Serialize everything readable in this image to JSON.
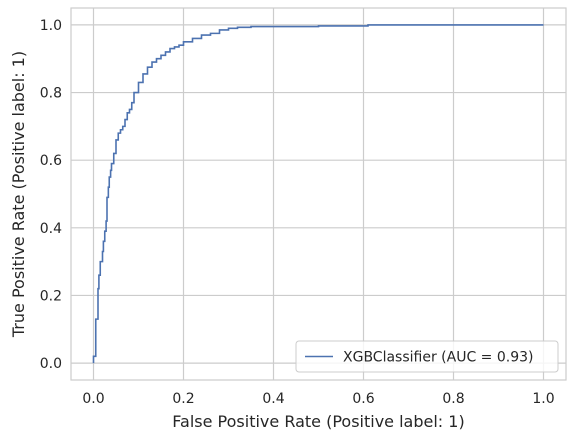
{
  "chart_data": {
    "type": "line",
    "title": "",
    "xlabel": "False Positive Rate (Positive label: 1)",
    "ylabel": "True Positive Rate (Positive label: 1)",
    "xlim": [
      -0.05,
      1.05
    ],
    "ylim": [
      -0.05,
      1.05
    ],
    "xticks": [
      0.0,
      0.2,
      0.4,
      0.6,
      0.8,
      1.0
    ],
    "yticks": [
      0.0,
      0.2,
      0.4,
      0.6,
      0.8,
      1.0
    ],
    "xtick_labels": [
      "0.0",
      "0.2",
      "0.4",
      "0.6",
      "0.8",
      "1.0"
    ],
    "ytick_labels": [
      "0.0",
      "0.2",
      "0.4",
      "0.6",
      "0.8",
      "1.0"
    ],
    "grid": true,
    "legend_position": "lower-right",
    "series": [
      {
        "name": "XGBClassifier (AUC = 0.93)",
        "color": "#4c72b0",
        "x": [
          0.0,
          0.0,
          0.005,
          0.005,
          0.01,
          0.01,
          0.012,
          0.015,
          0.02,
          0.022,
          0.025,
          0.028,
          0.03,
          0.033,
          0.035,
          0.038,
          0.04,
          0.045,
          0.05,
          0.055,
          0.06,
          0.065,
          0.07,
          0.075,
          0.08,
          0.085,
          0.09,
          0.1,
          0.11,
          0.12,
          0.13,
          0.14,
          0.15,
          0.16,
          0.17,
          0.18,
          0.19,
          0.2,
          0.22,
          0.24,
          0.26,
          0.28,
          0.3,
          0.32,
          0.35,
          0.4,
          0.5,
          0.6,
          0.61,
          0.7,
          0.8,
          0.9,
          1.0
        ],
        "y": [
          0.0,
          0.02,
          0.05,
          0.13,
          0.18,
          0.22,
          0.26,
          0.3,
          0.33,
          0.36,
          0.39,
          0.42,
          0.49,
          0.52,
          0.55,
          0.57,
          0.59,
          0.62,
          0.66,
          0.68,
          0.69,
          0.7,
          0.72,
          0.74,
          0.75,
          0.77,
          0.8,
          0.83,
          0.855,
          0.875,
          0.89,
          0.9,
          0.91,
          0.92,
          0.93,
          0.935,
          0.94,
          0.95,
          0.96,
          0.97,
          0.975,
          0.985,
          0.99,
          0.993,
          0.995,
          0.995,
          0.997,
          0.997,
          1.0,
          1.0,
          1.0,
          1.0,
          1.0
        ]
      }
    ]
  }
}
